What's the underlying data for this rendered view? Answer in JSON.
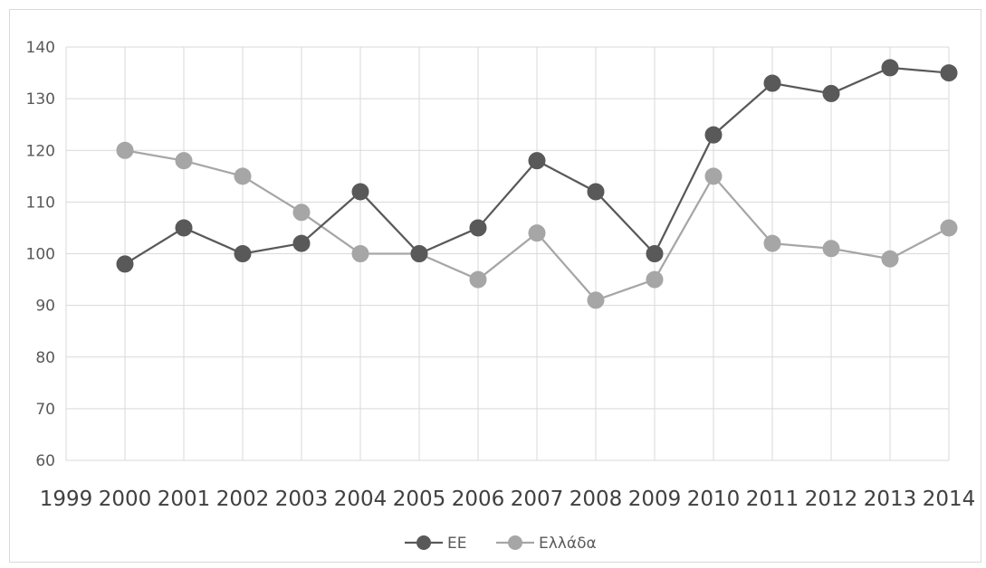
{
  "chart_data": {
    "type": "line",
    "title": "",
    "xlabel": "",
    "ylabel": "",
    "ylim": [
      60,
      140
    ],
    "y_ticks": [
      "60",
      "70",
      "80",
      "90",
      "100",
      "110",
      "120",
      "130",
      "140"
    ],
    "categories": [
      "1999",
      "2000",
      "2001",
      "2002",
      "2003",
      "2004",
      "2005",
      "2006",
      "2007",
      "2008",
      "2009",
      "2010",
      "2011",
      "2012",
      "2013",
      "2014"
    ],
    "grid": true,
    "legend_position": "bottom",
    "series": [
      {
        "name": "ΕΕ",
        "color": "#595959",
        "x": [
          "2000",
          "2001",
          "2002",
          "2003",
          "2004",
          "2005",
          "2006",
          "2007",
          "2008",
          "2009",
          "2010",
          "2011",
          "2012",
          "2013",
          "2014"
        ],
        "values": [
          98,
          105,
          100,
          102,
          112,
          100,
          105,
          118,
          112,
          100,
          123,
          133,
          131,
          136,
          135
        ]
      },
      {
        "name": "Ελλάδα",
        "color": "#a6a6a6",
        "x": [
          "2000",
          "2001",
          "2002",
          "2003",
          "2004",
          "2005",
          "2006",
          "2007",
          "2008",
          "2009",
          "2010",
          "2011",
          "2012",
          "2013",
          "2014"
        ],
        "values": [
          120,
          118,
          115,
          108,
          100,
          100,
          95,
          104,
          91,
          95,
          115,
          102,
          101,
          99,
          105
        ]
      }
    ]
  }
}
